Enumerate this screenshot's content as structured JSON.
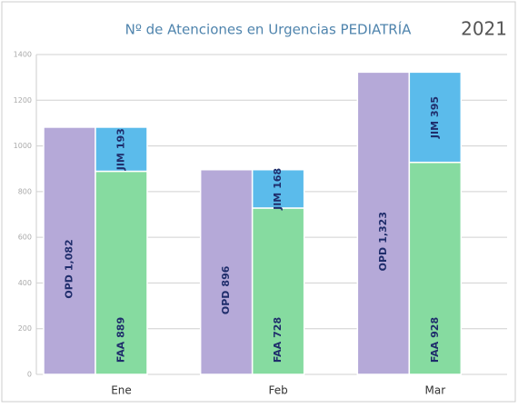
{
  "chart_data": {
    "type": "bar",
    "title": "Nº de Atenciones en Urgencias PEDIATRÍA",
    "subtitle": "2021",
    "categories": [
      "Ene",
      "Feb",
      "Mar"
    ],
    "series": [
      {
        "name": "OPD",
        "color": "#b5a9d8",
        "values": [
          1082,
          896,
          1323
        ],
        "value_labels": [
          "1,082",
          "896",
          "1,323"
        ]
      },
      {
        "name": "FAA",
        "color": "#86dba0",
        "values": [
          889,
          728,
          928
        ]
      },
      {
        "name": "JIM",
        "color": "#5bbbeb",
        "values": [
          193,
          168,
          395
        ]
      }
    ],
    "ylim": [
      0,
      1400
    ],
    "yticks": [
      0,
      200,
      400,
      600,
      800,
      1000,
      1200,
      1400
    ],
    "grid": true
  }
}
